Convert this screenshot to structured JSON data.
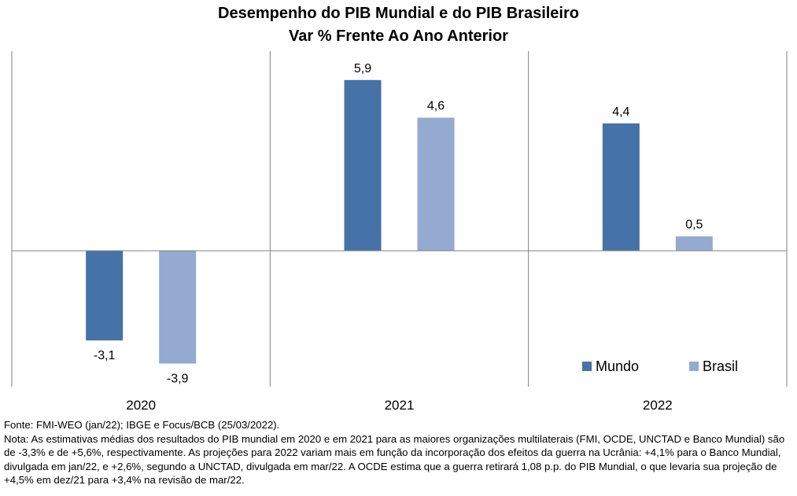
{
  "title": "Desempenho do PIB Mundial e do PIB Brasileiro",
  "subtitle": "Var % Frente Ao Ano Anterior",
  "chart_data": {
    "type": "bar",
    "categories": [
      "2020",
      "2021",
      "2022"
    ],
    "series": [
      {
        "name": "Mundo",
        "values": [
          -3.1,
          5.9,
          4.4
        ],
        "color": "#4572a7"
      },
      {
        "name": "Brasil",
        "values": [
          -3.9,
          4.6,
          0.5
        ],
        "color": "#94aad1"
      }
    ],
    "data_labels": {
      "Mundo": [
        "-3,1",
        "5,9",
        "4,4"
      ],
      "Brasil": [
        "-3,9",
        "4,6",
        "0,5"
      ]
    },
    "ylim": [
      -4.7,
      6.9
    ],
    "grid": false,
    "legend_position": "bottom-right",
    "category_separators": true
  },
  "notes": {
    "source": "Fonte: FMI-WEO (jan/22); IBGE e Focus/BCB (25/03/2022).",
    "note": "Nota: As estimativas médias dos resultados do PIB mundial em 2020 e em 2021 para as maiores organizações multilaterais (FMI, OCDE, UNCTAD e Banco Mundial) são de -3,3% e de +5,6%, respectivamente. As projeções para 2022 variam mais em função da incorporação dos efeitos da guerra na Ucrânia: +4,1% para o Banco Mundial, divulgada em jan/22, e +2,6%, segundo a UNCTAD, divulgada em mar/22. A OCDE estima que a guerra retirará 1,08 p.p. do PIB Mundial, o que levaria sua projeção de +4,5% em dez/21 para +3,4% na revisão de mar/22."
  }
}
